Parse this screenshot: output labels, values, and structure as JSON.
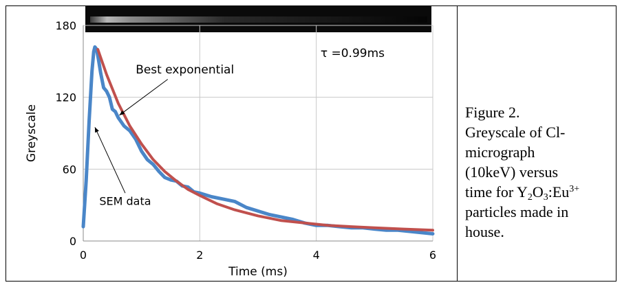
{
  "chart_data": {
    "type": "line",
    "xlabel": "Time (ms)",
    "ylabel": "Greyscale",
    "xlim": [
      0,
      6
    ],
    "ylim": [
      0,
      180
    ],
    "xticks": [
      "0",
      "2",
      "4",
      "6"
    ],
    "yticks": [
      "0",
      "60",
      "120",
      "180"
    ],
    "grid": true,
    "tau_label": "τ =0.99ms",
    "annotations": [
      {
        "text": "Best exponential",
        "target": [
          0.62,
          105
        ]
      },
      {
        "text": "SEM data",
        "target": [
          0.2,
          95
        ]
      }
    ],
    "series": [
      {
        "label": "SEM data",
        "color": "#4a86c8",
        "x": [
          0.0,
          0.05,
          0.1,
          0.15,
          0.18,
          0.2,
          0.23,
          0.26,
          0.3,
          0.35,
          0.4,
          0.45,
          0.5,
          0.55,
          0.6,
          0.7,
          0.8,
          0.9,
          1.0,
          1.1,
          1.2,
          1.3,
          1.4,
          1.5,
          1.6,
          1.7,
          1.8,
          1.9,
          2.0,
          2.2,
          2.4,
          2.6,
          2.8,
          3.0,
          3.2,
          3.4,
          3.6,
          3.8,
          4.0,
          4.2,
          4.4,
          4.6,
          4.8,
          5.0,
          5.2,
          5.4,
          5.6,
          5.8,
          6.0
        ],
        "y": [
          12,
          50,
          100,
          142,
          158,
          162,
          160,
          152,
          140,
          128,
          125,
          120,
          110,
          108,
          103,
          96,
          92,
          85,
          75,
          68,
          64,
          58,
          53,
          51,
          50,
          46,
          45,
          41,
          40,
          37,
          35,
          33,
          28,
          25,
          22,
          20,
          18,
          15,
          13,
          13,
          12,
          11,
          11,
          10,
          9,
          9,
          8,
          7,
          6
        ]
      },
      {
        "label": "Best exponential",
        "color": "#c0504d",
        "x": [
          0.25,
          0.4,
          0.6,
          0.8,
          1.0,
          1.2,
          1.4,
          1.6,
          1.8,
          2.0,
          2.3,
          2.6,
          3.0,
          3.4,
          3.8,
          4.2,
          4.6,
          5.0,
          5.5,
          6.0
        ],
        "y": [
          160,
          139,
          115,
          96,
          81,
          68,
          58,
          50,
          43,
          38,
          31,
          26,
          21,
          17,
          15,
          13,
          12,
          11,
          10,
          9
        ]
      }
    ]
  },
  "caption": {
    "line1": "Figure 2.",
    "line2": "Greyscale of Cl-",
    "line3": "micrograph",
    "line4": "(10keV) versus",
    "line5_prefix": "time for Y",
    "sub1": "2",
    "o_text": "O",
    "sub2": "3",
    "eu_text": ":Eu",
    "sup": "3+",
    "line6": "particles made in",
    "line7": "house."
  }
}
